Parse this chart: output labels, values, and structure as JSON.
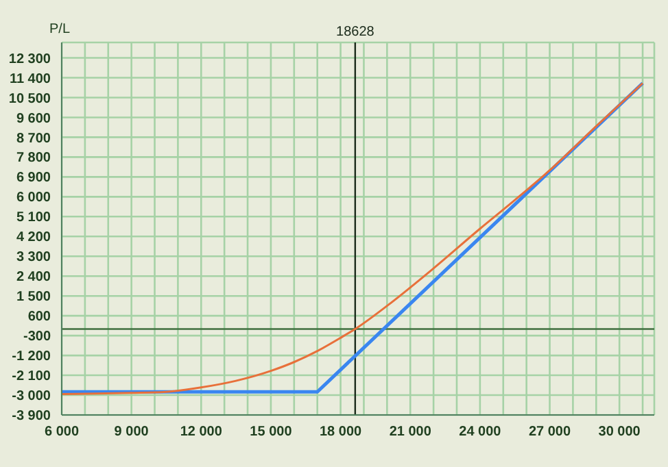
{
  "chart_data": {
    "type": "line",
    "ylabel": "P/L",
    "xlim": [
      6000,
      31500
    ],
    "ylim": [
      -3900,
      13000
    ],
    "xticks": [
      {
        "value": 6000,
        "label": "6 000"
      },
      {
        "value": 7000,
        "label": null
      },
      {
        "value": 8000,
        "label": null
      },
      {
        "value": 9000,
        "label": "9 000"
      },
      {
        "value": 10000,
        "label": null
      },
      {
        "value": 11000,
        "label": null
      },
      {
        "value": 12000,
        "label": "12 000"
      },
      {
        "value": 13000,
        "label": null
      },
      {
        "value": 14000,
        "label": null
      },
      {
        "value": 15000,
        "label": "15 000"
      },
      {
        "value": 16000,
        "label": null
      },
      {
        "value": 17000,
        "label": null
      },
      {
        "value": 18000,
        "label": "18 000"
      },
      {
        "value": 19000,
        "label": null
      },
      {
        "value": 20000,
        "label": null
      },
      {
        "value": 21000,
        "label": "21 000"
      },
      {
        "value": 22000,
        "label": null
      },
      {
        "value": 23000,
        "label": null
      },
      {
        "value": 24000,
        "label": "24 000"
      },
      {
        "value": 25000,
        "label": null
      },
      {
        "value": 26000,
        "label": null
      },
      {
        "value": 27000,
        "label": "27 000"
      },
      {
        "value": 28000,
        "label": null
      },
      {
        "value": 29000,
        "label": null
      },
      {
        "value": 30000,
        "label": "30 000"
      },
      {
        "value": 31000,
        "label": null
      }
    ],
    "yticks": [
      {
        "value": -3900,
        "label": "-3 900"
      },
      {
        "value": -3000,
        "label": "-3 000"
      },
      {
        "value": -2100,
        "label": "-2 100"
      },
      {
        "value": -1200,
        "label": "-1 200"
      },
      -300,
      600,
      {
        "value": 1500,
        "label": "1 500"
      },
      {
        "value": 2400,
        "label": "2 400"
      },
      {
        "value": 3300,
        "label": "3 300"
      },
      {
        "value": 4200,
        "label": "4 200"
      },
      {
        "value": 5100,
        "label": "5 100"
      },
      {
        "value": 6000,
        "label": "6 000"
      },
      {
        "value": 6900,
        "label": "6 900"
      },
      {
        "value": 7800,
        "label": "7 800"
      },
      {
        "value": 8700,
        "label": "8 700"
      },
      {
        "value": 9600,
        "label": "9 600"
      },
      {
        "value": 10500,
        "label": "10 500"
      },
      {
        "value": 11400,
        "label": "11 400"
      },
      {
        "value": 12300,
        "label": "12 300"
      }
    ],
    "grid": true,
    "series": [
      {
        "color": "#e8703a",
        "x": [
          6000,
          7500,
          9000,
          10500,
          12000,
          13500,
          15000,
          16000,
          17000,
          18000,
          18628,
          20000,
          22000,
          24000,
          25500,
          27000,
          29000,
          31000
        ],
        "values": [
          -2950,
          -2930,
          -2900,
          -2850,
          -2650,
          -2350,
          -1900,
          -1500,
          -1000,
          -400,
          0,
          1050,
          2750,
          4550,
          5850,
          7200,
          9200,
          11150
        ]
      },
      {
        "color": "#3a86f0",
        "x": [
          6000,
          17000,
          31000
        ],
        "values": [
          -2850,
          -2850,
          11150
        ]
      }
    ],
    "ref_lines": [
      {
        "axis": "x",
        "value": 18628,
        "label": "18628",
        "color": "#1a2a1a"
      },
      {
        "axis": "y",
        "value": 0,
        "color": "#3f6f3f"
      }
    ]
  }
}
